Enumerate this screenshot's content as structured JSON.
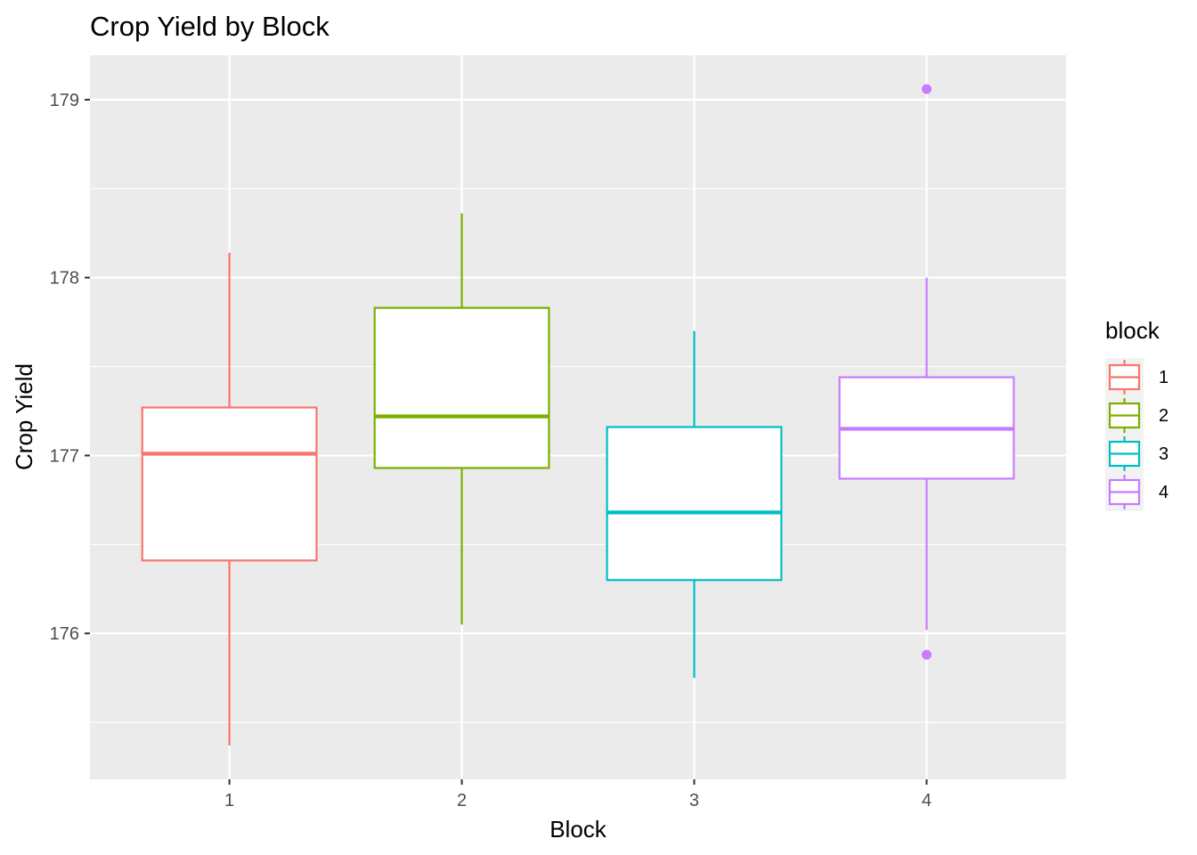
{
  "chart_data": {
    "type": "boxplot",
    "title": "Crop Yield by Block",
    "xlabel": "Block",
    "ylabel": "Crop Yield",
    "categories": [
      "1",
      "2",
      "3",
      "4"
    ],
    "ylim": [
      175.18,
      179.25
    ],
    "yticks": [
      176,
      177,
      178,
      179
    ],
    "y_minor_ticks": [
      175.5,
      176.5,
      177.5,
      178.5
    ],
    "grid": true,
    "legend": {
      "title": "block",
      "position": "right",
      "entries": [
        "1",
        "2",
        "3",
        "4"
      ]
    },
    "series": [
      {
        "category": "1",
        "color": "#F8766D",
        "whisker_low": 175.37,
        "q1": 176.41,
        "median": 177.01,
        "q3": 177.27,
        "whisker_high": 178.14,
        "outliers": []
      },
      {
        "category": "2",
        "color": "#7CAE00",
        "whisker_low": 176.05,
        "q1": 176.93,
        "median": 177.22,
        "q3": 177.83,
        "whisker_high": 178.36,
        "outliers": []
      },
      {
        "category": "3",
        "color": "#00BFC4",
        "whisker_low": 175.75,
        "q1": 176.3,
        "median": 176.68,
        "q3": 177.16,
        "whisker_high": 177.7,
        "outliers": []
      },
      {
        "category": "4",
        "color": "#C77CFF",
        "whisker_low": 176.02,
        "q1": 176.87,
        "median": 177.15,
        "q3": 177.44,
        "whisker_high": 178.0,
        "outliers": [
          175.88,
          179.06
        ]
      }
    ]
  }
}
